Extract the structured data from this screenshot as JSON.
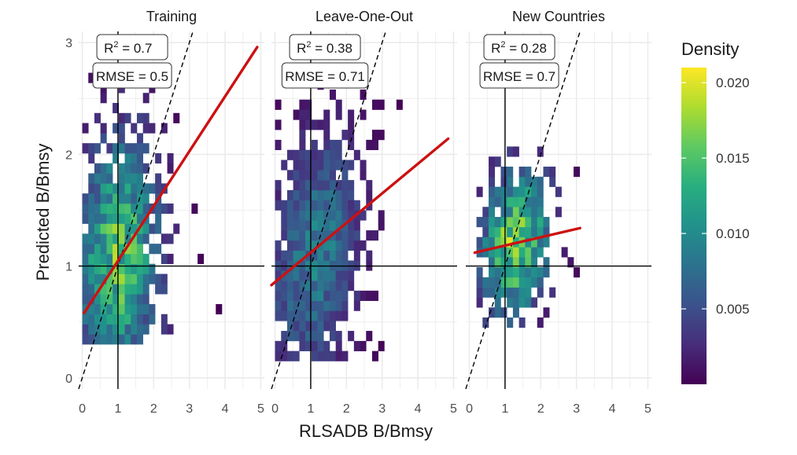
{
  "chart_data": {
    "type": "heatmap",
    "xlabel": "RLSADB B/Bmsy",
    "ylabel": "Predicted B/Bmsy",
    "xlim": [
      -0.1,
      5.1
    ],
    "ylim": [
      -0.1,
      3.1
    ],
    "x_ticks": [
      "0",
      "1",
      "2",
      "3",
      "4",
      "5"
    ],
    "y_ticks": [
      "0",
      "1",
      "2",
      "3"
    ],
    "reference_lines": {
      "horizontal": 1,
      "vertical": 1,
      "identity": "dashed 1:1 line"
    },
    "colors": {
      "fit_line": "#cc1111",
      "ref_line": "#000000",
      "grid": "#ebebeb",
      "viridis": [
        "#440154",
        "#472d7b",
        "#3b528b",
        "#2c728e",
        "#21918c",
        "#28ae80",
        "#5ec962",
        "#addc30",
        "#fde725"
      ]
    },
    "legend": {
      "title": "Density",
      "placement": "right",
      "min": 0,
      "max": 0.021,
      "ticks": [
        {
          "value": 0.005,
          "label": "0.005"
        },
        {
          "value": 0.01,
          "label": "0.010"
        },
        {
          "value": 0.015,
          "label": "0.015"
        },
        {
          "value": 0.02,
          "label": "0.020"
        }
      ]
    },
    "panels": [
      {
        "title": "Training",
        "r2_label": "= 0.7",
        "rmse_label": "RMSE = 0.5",
        "fit_line": {
          "x": [
            0.05,
            4.9
          ],
          "y": [
            0.58,
            2.96
          ]
        },
        "density": {
          "x_range": [
            0.0,
            4.0
          ],
          "y_range": [
            0.3,
            2.8
          ],
          "center": [
            1.0,
            1.05
          ],
          "spread": [
            0.85,
            0.75
          ],
          "rotation": 0.55,
          "peak": 0.017,
          "seed": 11
        }
      },
      {
        "title": "Leave-One-Out",
        "r2_label": "= 0.38",
        "rmse_label": "RMSE = 0.71",
        "fit_line": {
          "x": [
            -0.1,
            4.85
          ],
          "y": [
            0.83,
            2.14
          ]
        },
        "density": {
          "x_range": [
            0.0,
            4.2
          ],
          "y_range": [
            0.15,
            2.7
          ],
          "center": [
            1.1,
            1.1
          ],
          "spread": [
            0.95,
            0.7
          ],
          "rotation": 0.45,
          "peak": 0.01,
          "seed": 23
        }
      },
      {
        "title": "New Countries",
        "r2_label": "= 0.28",
        "rmse_label": "RMSE = 0.7",
        "fit_line": {
          "x": [
            0.15,
            3.1
          ],
          "y": [
            1.12,
            1.34
          ]
        },
        "density": {
          "x_range": [
            0.2,
            3.0
          ],
          "y_range": [
            0.45,
            2.0
          ],
          "center": [
            1.3,
            1.2
          ],
          "spread": [
            0.7,
            0.45
          ],
          "rotation": 0.2,
          "peak": 0.019,
          "seed": 37
        }
      }
    ]
  }
}
